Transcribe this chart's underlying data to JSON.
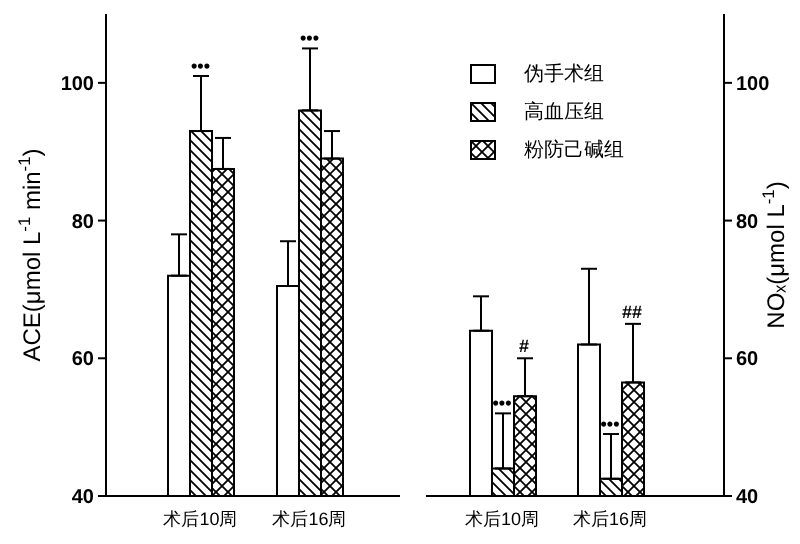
{
  "chart_data": [
    {
      "type": "bar",
      "categories": [
        "术后10周",
        "术后16周"
      ],
      "ylabel": "ACE(μmol L$^{-1}$ min$^{-1}$)",
      "ylim": [
        40,
        110
      ],
      "yticks": [
        40,
        60,
        80,
        100
      ],
      "legend": false,
      "series": [
        {
          "color": "#ffffff",
          "values": [
            72,
            70.5
          ],
          "errors": [
            [
              72,
              78
            ],
            [
              70.5,
              77
            ]
          ]
        },
        {
          "color": "#000000",
          "values": [
            93,
            96
          ],
          "errors": [
            [
              93,
              101
            ],
            [
              96,
              105
            ]
          ]
        },
        {
          "color": "#000000",
          "values": [
            87.5,
            89
          ],
          "errors": [
            [
              87.5,
              92
            ],
            [
              89,
              93
            ]
          ]
        }
      ],
      "annotations": [
        {
          "text": "•••",
          "x": "术后10周",
          "y": 101
        },
        {
          "text": "•••",
          "x": "术后16周",
          "y": 105
        }
      ]
    },
    {
      "type": "bar",
      "categories": [
        "术后10周",
        "术后16周"
      ],
      "ylabel": "NOₓ(μmol L$^{-1}$)",
      "ylim": [
        40,
        110
      ],
      "yticks": [
        40,
        60,
        80,
        100
      ],
      "legend": "top left",
      "series": [
        {
          "name": "伪手术组",
          "color": "#ffffff",
          "values": [
            64,
            62
          ],
          "errors": [
            [
              64,
              69
            ],
            [
              62,
              73
            ]
          ]
        },
        {
          "name": "高血压组",
          "color": "#000000",
          "values": [
            44,
            42.5
          ],
          "errors": [
            [
              44,
              52
            ],
            [
              42.5,
              49
            ]
          ]
        },
        {
          "name": "粉防己碱组",
          "color": "#000000",
          "values": [
            54.5,
            56.5
          ],
          "errors": [
            [
              54.5,
              60
            ],
            [
              56.5,
              65
            ]
          ]
        }
      ],
      "annotations": [
        {
          "text": "•••",
          "x": "术后10周",
          "y": 52
        },
        "#",
        {
          "text": "•••",
          "x": "术后16周",
          "y": 49
        },
        "##"
      ]
    }
  ]
}
